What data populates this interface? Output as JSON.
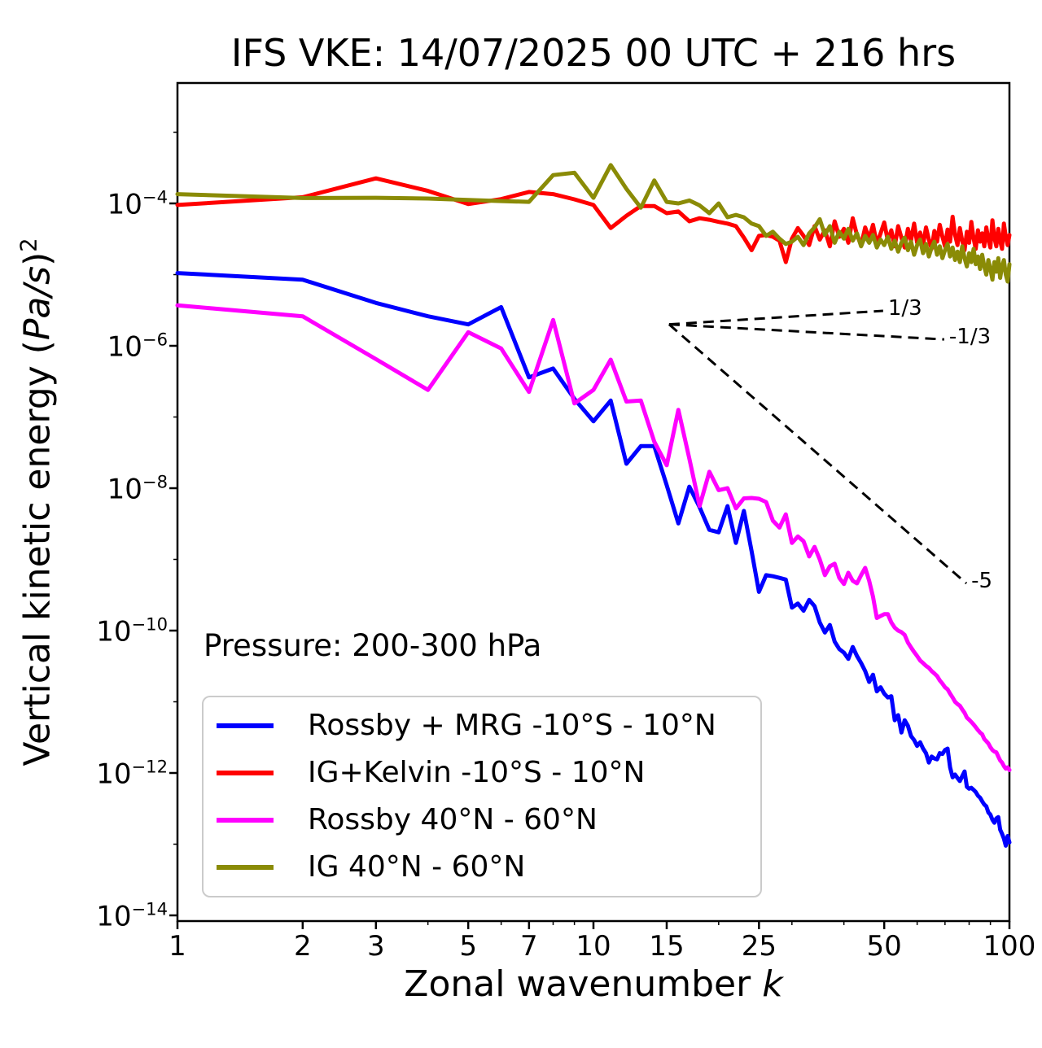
{
  "title": "IFS VKE: 14/07/2025 00 UTC + 216 hrs",
  "axes": {
    "x": {
      "label_prefix": "Zonal wavenumber ",
      "label_var": "k",
      "scale": "log",
      "min": 1,
      "max": 100,
      "major_ticks": [
        {
          "value": 1,
          "label": "1"
        },
        {
          "value": 2,
          "label": "2"
        },
        {
          "value": 3,
          "label": "3"
        },
        {
          "value": 5,
          "label": "5"
        },
        {
          "value": 7,
          "label": "7"
        },
        {
          "value": 10,
          "label": "10"
        },
        {
          "value": 15,
          "label": "15"
        },
        {
          "value": 25,
          "label": "25"
        },
        {
          "value": 50,
          "label": "50"
        },
        {
          "value": 100,
          "label": "100"
        }
      ],
      "minor_ticks": [
        4,
        6,
        8,
        9,
        20,
        30,
        40,
        60,
        70,
        80,
        90
      ]
    },
    "y": {
      "label_prefix": "Vertical kinetic energy (",
      "label_units": "Pa/s",
      "label_close": ")",
      "label_exponent": "2",
      "scale": "log",
      "min": 8.3e-15,
      "max": 0.0049,
      "major_ticks": [
        {
          "value": 0.0001,
          "base": "10",
          "exp": "−4"
        },
        {
          "value": 1e-06,
          "base": "10",
          "exp": "−6"
        },
        {
          "value": 1e-08,
          "base": "10",
          "exp": "−8"
        },
        {
          "value": 1e-10,
          "base": "10",
          "exp": "−10"
        },
        {
          "value": 1e-12,
          "base": "10",
          "exp": "−12"
        },
        {
          "value": 1e-14,
          "base": "10",
          "exp": "−14"
        }
      ],
      "minor_tick_values": [
        0.001,
        1e-05,
        1e-07,
        1e-09,
        1e-11,
        1e-13
      ]
    }
  },
  "annotations": {
    "pressure": "Pressure: 200-300 hPa",
    "slope_lines": [
      {
        "label": "1/3",
        "from_k": 15.2,
        "from_v": 2e-06,
        "to_k": 49.7,
        "to_v": 3.1e-06
      },
      {
        "label": "-1/3",
        "from_k": 15.2,
        "from_v": 2e-06,
        "to_k": 69.7,
        "to_v": 1.23e-06
      },
      {
        "label": "-5",
        "from_k": 15.2,
        "from_v": 2e-06,
        "to_k": 78.8,
        "to_v": 4.6e-10
      }
    ]
  },
  "legend": {
    "items": [
      {
        "label": "Rossby + MRG -10°S - 10°N",
        "series": "rossby_mrg_tropics"
      },
      {
        "label": "IG+Kelvin -10°S - 10°N",
        "series": "ig_kelvin_tropics"
      },
      {
        "label": "Rossby 40°N - 60°N",
        "series": "rossby_midlat"
      },
      {
        "label": "IG 40°N - 60°N",
        "series": "ig_midlat"
      }
    ]
  },
  "chart_data": {
    "type": "line",
    "x_definition": "zonal wavenumber k = array index + 1 (k from 1 to 100)",
    "xlim": [
      1,
      100
    ],
    "ylim": [
      8.3e-15,
      0.0049
    ],
    "log_x": true,
    "log_y": true,
    "grid": false,
    "legend_position": "lower left",
    "series": [
      {
        "id": "rossby_mrg_tropics",
        "name": "Rossby + MRG -10°S - 10°N",
        "color": "#0000ff",
        "values": [
          1.05e-05,
          8.5e-06,
          4e-06,
          2.6e-06,
          2e-06,
          3.5e-06,
          3.6e-07,
          4.8e-07,
          1.8e-07,
          8.7e-08,
          1.7e-07,
          2.2e-08,
          3.9e-08,
          3.9e-08,
          1.1e-08,
          3.2e-09,
          1.05e-08,
          5.4e-09,
          2.6e-09,
          2.4e-09,
          5.6e-09,
          1.7e-09,
          4.8e-09,
          1.3e-09,
          3.5e-10,
          6e-10,
          5.8e-10,
          5.5e-10,
          5.2e-10,
          2.1e-10,
          2.4e-10,
          1.9e-10,
          2.7e-10,
          2.2e-10,
          1.3e-10,
          9.4e-11,
          1.2e-10,
          7e-11,
          5.5e-11,
          4.9e-11,
          4e-11,
          5.9e-11,
          4.4e-11,
          3.5e-11,
          2.7e-11,
          1.9e-11,
          2.4e-11,
          1.4e-11,
          1.6e-11,
          1.3e-11,
          1.15e-11,
          1.2e-11,
          5.5e-12,
          6.5e-12,
          3.7e-12,
          5.5e-12,
          4.6e-12,
          3.3e-12,
          2.9e-12,
          2.4e-12,
          2.7e-12,
          2.2e-12,
          1.9e-12,
          1.4e-12,
          1.7e-12,
          1.6e-12,
          1.55e-12,
          1.9e-12,
          1.85e-12,
          2.1e-12,
          2.2e-12,
          1.2e-12,
          8.7e-13,
          9.5e-13,
          8.5e-13,
          7.7e-13,
          9e-13,
          1.05e-12,
          6.4e-13,
          6e-13,
          6.2e-13,
          5.8e-13,
          5.4e-13,
          4.8e-13,
          4.5e-13,
          4e-13,
          3.6e-13,
          3.4e-13,
          2.8e-13,
          2.6e-13,
          2.2e-13,
          2e-13,
          2.3e-13,
          2.4e-13,
          1.6e-13,
          1.4e-13,
          1.2e-13,
          9.5e-14,
          1.3e-13,
          1.06e-13
        ]
      },
      {
        "id": "ig_kelvin_tropics",
        "name": "IG+Kelvin -10°S - 10°N",
        "color": "#ff0000",
        "values": [
          9.5e-05,
          0.000122,
          0.000225,
          0.00015,
          9.8e-05,
          0.000115,
          0.000145,
          0.000135,
          0.000114,
          9.5e-05,
          4.5e-05,
          6.7e-05,
          9.2e-05,
          9.2e-05,
          7.3e-05,
          7.7e-05,
          5.6e-05,
          6.2e-05,
          5.9e-05,
          5.5e-05,
          5.2e-05,
          4.8e-05,
          3.3e-05,
          2.2e-05,
          3.5e-05,
          3.6e-05,
          3.4e-05,
          3e-05,
          1.5e-05,
          3.2e-05,
          4.5e-05,
          3.5e-05,
          2.6e-05,
          4.8e-05,
          3.1e-05,
          4.2e-05,
          2.5e-05,
          5.6e-05,
          3.4e-05,
          4.4e-05,
          2.8e-05,
          6.2e-05,
          3.6e-05,
          2.6e-05,
          4.6e-05,
          3.2e-05,
          5e-05,
          2.7e-05,
          3.8e-05,
          5.4e-05,
          3e-05,
          4.2e-05,
          2.5e-05,
          4.8e-05,
          3.3e-05,
          2.4e-05,
          4.4e-05,
          3e-05,
          5.2e-05,
          2.8e-05,
          3.9e-05,
          2.6e-05,
          4.6e-05,
          3.1e-05,
          2.3e-05,
          4.1e-05,
          2.9e-05,
          5e-05,
          3.4e-05,
          2.5e-05,
          4.3e-05,
          2.9e-05,
          6.5e-05,
          3.6e-05,
          2.6e-05,
          4.5e-05,
          3e-05,
          2.2e-05,
          4e-05,
          2.8e-05,
          5.5e-05,
          3.2e-05,
          2.3e-05,
          4.2e-05,
          2.9e-05,
          3.8e-05,
          2.5e-05,
          4.6e-05,
          3.1e-05,
          2.4e-05,
          5.8e-05,
          3.3e-05,
          2.5e-05,
          4.4e-05,
          3e-05,
          2.3e-05,
          5.2e-05,
          3.4e-05,
          2.6e-05,
          3.6e-05
        ]
      },
      {
        "id": "rossby_midlat",
        "name": "Rossby 40°N - 60°N",
        "color": "#ff00ff",
        "values": [
          3.7e-06,
          2.6e-06,
          6.5e-07,
          2.4e-07,
          1.55e-06,
          9.2e-07,
          2.25e-07,
          2.3e-06,
          1.55e-07,
          2.4e-07,
          6.4e-07,
          1.65e-07,
          1.7e-07,
          4.5e-08,
          2.1e-08,
          1.26e-07,
          2.6e-08,
          5.6e-09,
          1.7e-08,
          9.4e-09,
          1e-08,
          5.2e-09,
          7.2e-09,
          7.3e-09,
          7.1e-09,
          6.4e-09,
          3.5e-09,
          2.8e-09,
          4.3e-09,
          1.7e-09,
          2.1e-09,
          1.8e-09,
          1.1e-09,
          1.5e-09,
          1e-09,
          6e-10,
          8e-10,
          8.7e-10,
          5.5e-10,
          4.5e-10,
          6.5e-10,
          5e-10,
          4.6e-10,
          6e-10,
          7.6e-10,
          5e-10,
          3e-10,
          1.5e-10,
          1.6e-10,
          1.7e-10,
          1.7e-10,
          1.3e-10,
          1.1e-10,
          1e-10,
          9.5e-11,
          8.7e-11,
          6.8e-11,
          5.8e-11,
          5e-11,
          4.4e-11,
          3.8e-11,
          3.5e-11,
          3.2e-11,
          3e-11,
          2.7e-11,
          2.5e-11,
          2.3e-11,
          2e-11,
          1.8e-11,
          1.6e-11,
          1.5e-11,
          1.3e-11,
          1.15e-11,
          1e-11,
          9.3e-12,
          8.8e-12,
          7.8e-12,
          7e-12,
          6e-12,
          5.6e-12,
          5.2e-12,
          4.8e-12,
          4.4e-12,
          4e-12,
          3.7e-12,
          3.5e-12,
          3e-12,
          2.8e-12,
          2.6e-12,
          2.3e-12,
          2.1e-12,
          2e-12,
          1.95e-12,
          1.7e-12,
          1.5e-12,
          1.4e-12,
          1.25e-12,
          1.15e-12,
          1.2e-12,
          1.1e-12
        ]
      },
      {
        "id": "ig_midlat",
        "name": "IG 40°N - 60°N",
        "color": "#8a8b06",
        "values": [
          0.000135,
          0.000119,
          0.00012,
          0.000117,
          0.000112,
          0.000108,
          0.000105,
          0.00025,
          0.00027,
          0.00012,
          0.000345,
          0.00016,
          8.7e-05,
          0.00021,
          0.000105,
          0.0001,
          0.00011,
          9.4e-05,
          7.3e-05,
          0.0001,
          6.4e-05,
          6.9e-05,
          6.4e-05,
          5.2e-05,
          4.8e-05,
          3.5e-05,
          4e-05,
          3.2e-05,
          2.7e-05,
          2.9e-05,
          3.4e-05,
          2.6e-05,
          3.8e-05,
          4.6e-05,
          6e-05,
          3.6e-05,
          4.8e-05,
          2.8e-05,
          4e-05,
          3.2e-05,
          4.4e-05,
          3e-05,
          3.8e-05,
          2.5e-05,
          3.5e-05,
          2.8e-05,
          3.6e-05,
          2.4e-05,
          3.1e-05,
          2.6e-05,
          3.4e-05,
          2.3e-05,
          3e-05,
          2.1e-05,
          2.8e-05,
          3.3e-05,
          2.2e-05,
          2.9e-05,
          1.9e-05,
          2.6e-05,
          3.1e-05,
          2e-05,
          2.7e-05,
          1.8e-05,
          2.4e-05,
          2.9e-05,
          1.9e-05,
          2.5e-05,
          1.7e-05,
          2.2e-05,
          2.7e-05,
          1.8e-05,
          2.4e-05,
          1.6e-05,
          2.1e-05,
          1.5e-05,
          2.5e-05,
          1.7e-05,
          1.3e-05,
          2e-05,
          1.5e-05,
          2.3e-05,
          1.4e-05,
          1.8e-05,
          1.2e-05,
          1.9e-05,
          1.3e-05,
          1e-05,
          1.6e-05,
          1.2e-05,
          8.5e-06,
          1.5e-05,
          1.1e-05,
          1.7e-05,
          9e-06,
          1.3e-05,
          1.6e-05,
          1e-05,
          8e-06,
          1.4e-05
        ]
      }
    ]
  }
}
